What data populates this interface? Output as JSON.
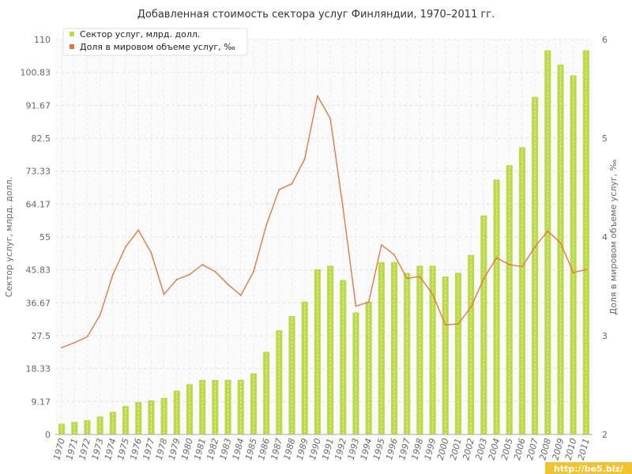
{
  "chart_data": {
    "type": "bar",
    "title": "Добавленная стоимость сектора услуг Финляндии, 1970–2011 гг.",
    "categories": [
      "1970",
      "1971",
      "1972",
      "1973",
      "1974",
      "1975",
      "1976",
      "1977",
      "1978",
      "1979",
      "1980",
      "1981",
      "1982",
      "1983",
      "1984",
      "1985",
      "1986",
      "1987",
      "1988",
      "1989",
      "1990",
      "1991",
      "1992",
      "1993",
      "1994",
      "1995",
      "1996",
      "1997",
      "1998",
      "1999",
      "2000",
      "2001",
      "2002",
      "2003",
      "2004",
      "2005",
      "2006",
      "2007",
      "2008",
      "2009",
      "2010",
      "2011"
    ],
    "series": [
      {
        "name": "Сектор услуг, млрд. долл.",
        "type": "bar",
        "axis": "left",
        "color": "#bcd94a",
        "values": [
          3.0,
          3.5,
          4.0,
          5.0,
          6.3,
          7.9,
          9.0,
          9.5,
          10.2,
          12.2,
          14.0,
          15.2,
          15.2,
          15.2,
          15.2,
          17.0,
          23.0,
          29.0,
          33.0,
          37.0,
          46.0,
          47.0,
          43.0,
          34.0,
          37.0,
          48.0,
          48.0,
          45.0,
          47.0,
          47.0,
          44.0,
          45.0,
          50.0,
          61.0,
          71.0,
          75.0,
          80.0,
          94.0,
          107.0,
          103.0,
          100.0,
          107.0
        ]
      },
      {
        "name": "Доля в мировом объеме услуг, ‰",
        "type": "line",
        "axis": "right",
        "color": "#e0723c",
        "values": [
          2.88,
          2.93,
          2.99,
          3.21,
          3.62,
          3.9,
          4.07,
          3.84,
          3.42,
          3.57,
          3.62,
          3.72,
          3.65,
          3.52,
          3.41,
          3.65,
          4.12,
          4.48,
          4.54,
          4.79,
          5.43,
          5.2,
          4.29,
          3.3,
          3.34,
          3.92,
          3.82,
          3.58,
          3.6,
          3.42,
          3.11,
          3.12,
          3.29,
          3.58,
          3.79,
          3.72,
          3.7,
          3.9,
          4.06,
          3.94,
          3.64,
          3.67
        ]
      }
    ],
    "yaxis_left": {
      "label": "Сектор услуг, млрд. долл.",
      "min": 0,
      "max": 110,
      "ticks": [
        "0",
        "9.17",
        "18.33",
        "27.5",
        "36.67",
        "45.83",
        "55",
        "64.17",
        "73.33",
        "82.5",
        "91.67",
        "100.83",
        "110"
      ]
    },
    "yaxis_right": {
      "label": "Доля в мировом объеме услуг, ‰",
      "min": 2,
      "max": 6,
      "ticks": [
        "2",
        "3",
        "4",
        "5",
        "6"
      ]
    },
    "grid": true,
    "legend": "top-left"
  },
  "watermark": "http://be5.biz/"
}
